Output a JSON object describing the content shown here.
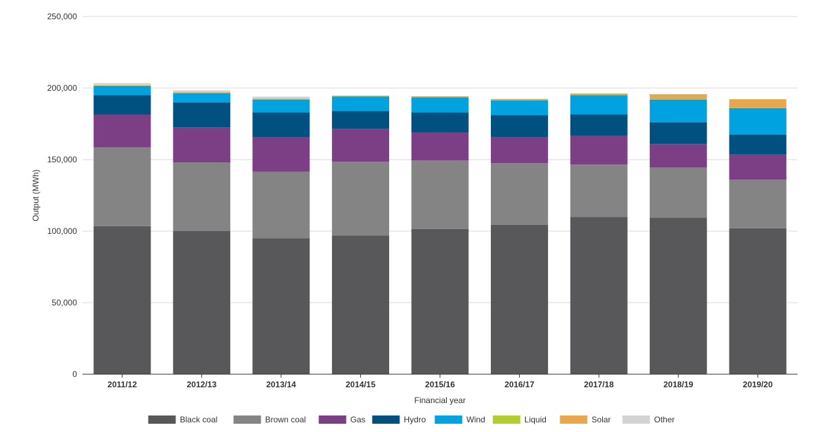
{
  "chart_data": {
    "type": "bar",
    "stacked": true,
    "xlabel": "Financial year",
    "ylabel": "Output (MWh)",
    "ylim": [
      0,
      250000
    ],
    "yticks": [
      0,
      50000,
      100000,
      150000,
      200000,
      250000
    ],
    "ytick_labels": [
      "0",
      "50,000",
      "100,000",
      "150,000",
      "200,000",
      "250,000"
    ],
    "grid": true,
    "legend_position": "bottom",
    "categories": [
      "2011/12",
      "2012/13",
      "2013/14",
      "2014/15",
      "2015/16",
      "2016/17",
      "2017/18",
      "2018/19",
      "2019/20"
    ],
    "series": [
      {
        "name": "Black coal",
        "color": "#58585a",
        "values": [
          103500,
          100000,
          95000,
          97000,
          101500,
          104500,
          110000,
          109500,
          102000
        ]
      },
      {
        "name": "Brown coal",
        "color": "#848484",
        "values": [
          55000,
          48000,
          46500,
          51500,
          48000,
          43000,
          36500,
          35000,
          34000
        ]
      },
      {
        "name": "Gas",
        "color": "#7c3f86",
        "values": [
          23000,
          24500,
          24000,
          23000,
          19500,
          18000,
          20000,
          16500,
          17500
        ]
      },
      {
        "name": "Hydro",
        "color": "#005080",
        "values": [
          13500,
          17500,
          17500,
          12500,
          14000,
          15500,
          15000,
          15000,
          14000
        ]
      },
      {
        "name": "Wind",
        "color": "#00a2e0",
        "values": [
          6500,
          6500,
          9000,
          10000,
          10500,
          10500,
          13500,
          16000,
          18500
        ]
      },
      {
        "name": "Liquid",
        "color": "#b5cc2e",
        "values": [
          200,
          200,
          200,
          200,
          200,
          200,
          200,
          200,
          200
        ]
      },
      {
        "name": "Solar",
        "color": "#eaa64c",
        "values": [
          300,
          400,
          500,
          500,
          600,
          700,
          1000,
          3500,
          6000
        ]
      },
      {
        "name": "Other",
        "color": "#d3d3d3",
        "values": [
          1500,
          1300,
          1300,
          0,
          0,
          0,
          0,
          0,
          0
        ]
      }
    ]
  }
}
